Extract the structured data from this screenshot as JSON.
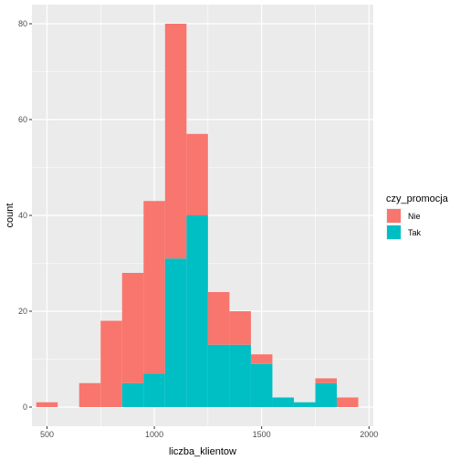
{
  "chart_data": {
    "type": "bar",
    "stacked": true,
    "xlabel": "liczba_klientow",
    "ylabel": "count",
    "xlim": [
      430,
      2020
    ],
    "ylim": [
      -4,
      84
    ],
    "x_ticks": [
      500,
      1000,
      1500,
      2000
    ],
    "y_ticks": [
      0,
      20,
      40,
      60,
      80
    ],
    "grid": true,
    "bin_width": 100,
    "bin_centers": [
      500,
      600,
      700,
      800,
      900,
      1000,
      1100,
      1200,
      1300,
      1400,
      1500,
      1600,
      1700,
      1800,
      1900
    ],
    "series": [
      {
        "name": "Nie",
        "color": "#F8766D",
        "values": [
          1,
          0,
          5,
          18,
          23,
          36,
          49,
          17,
          11,
          7,
          2,
          0,
          0,
          1,
          2
        ]
      },
      {
        "name": "Tak",
        "color": "#00BFC4",
        "values": [
          0,
          0,
          0,
          0,
          5,
          7,
          31,
          40,
          13,
          13,
          9,
          2,
          1,
          5,
          0
        ]
      }
    ],
    "legend": {
      "title": "czy_promocja",
      "position": "right"
    }
  }
}
